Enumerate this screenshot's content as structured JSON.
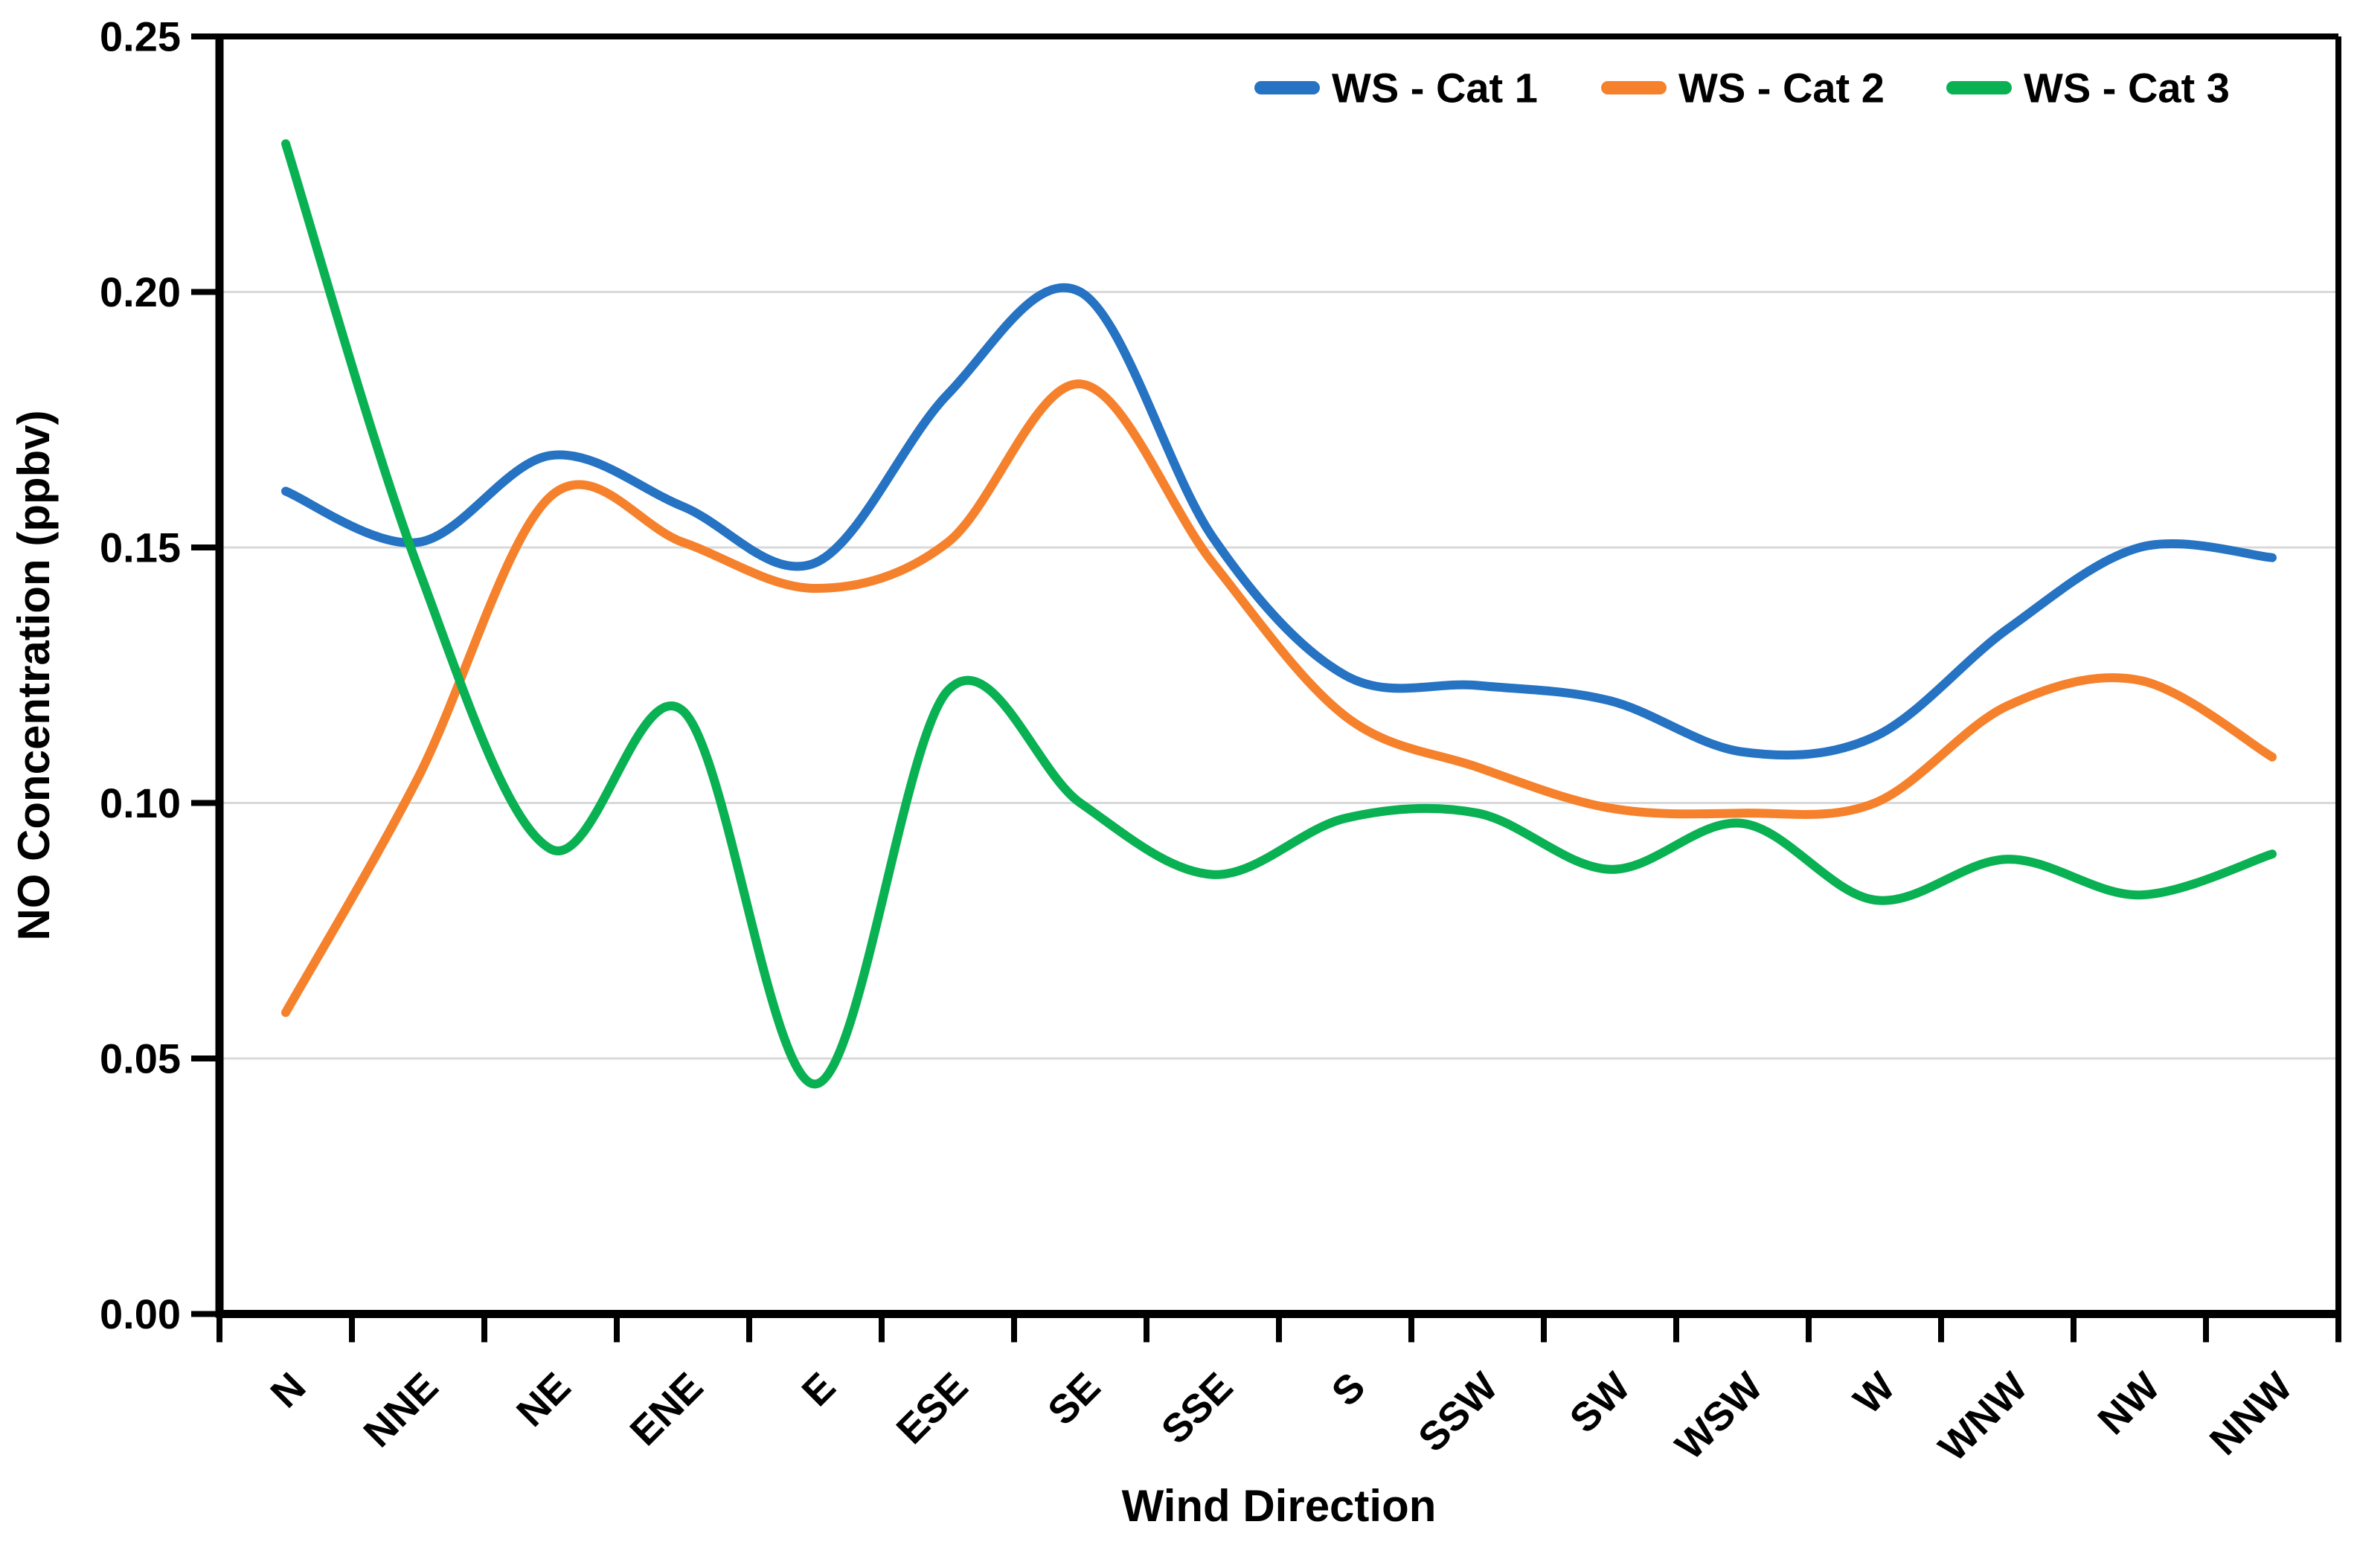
{
  "chart_data": {
    "type": "line",
    "title": "",
    "xlabel": "Wind Direction",
    "ylabel": "NO Concentration (ppbv)",
    "ylim": [
      0,
      0.25
    ],
    "ytick_step": 0.05,
    "ytick_labels": [
      "0.00",
      "0.05",
      "0.10",
      "0.15",
      "0.20",
      "0.25"
    ],
    "grid": true,
    "legend_position": "top-right-inside",
    "smooth_lines": true,
    "categories": [
      "N",
      "NNE",
      "NE",
      "ENE",
      "E",
      "ESE",
      "SE",
      "SSE",
      "S",
      "SSW",
      "SW",
      "WSW",
      "W",
      "WNW",
      "NW",
      "NNW"
    ],
    "series": [
      {
        "name": "WS - Cat 1",
        "color": "#2573C2",
        "values": [
          0.161,
          0.151,
          0.168,
          0.158,
          0.147,
          0.18,
          0.2,
          0.152,
          0.125,
          0.123,
          0.12,
          0.11,
          0.113,
          0.134,
          0.15,
          0.148
        ]
      },
      {
        "name": "WS - Cat 2",
        "color": "#F6812C",
        "values": [
          0.059,
          0.105,
          0.16,
          0.151,
          0.142,
          0.151,
          0.182,
          0.147,
          0.117,
          0.107,
          0.099,
          0.098,
          0.1,
          0.119,
          0.124,
          0.109
        ]
      },
      {
        "name": "WS - Cat 3",
        "color": "#09B152",
        "values": [
          0.229,
          0.146,
          0.091,
          0.118,
          0.045,
          0.122,
          0.1,
          0.086,
          0.097,
          0.098,
          0.087,
          0.096,
          0.081,
          0.089,
          0.082,
          0.09
        ]
      }
    ]
  },
  "colors": {
    "grid": "#D9D9D9",
    "axis": "#000000",
    "text": "#000000",
    "background": "#FFFFFF"
  }
}
